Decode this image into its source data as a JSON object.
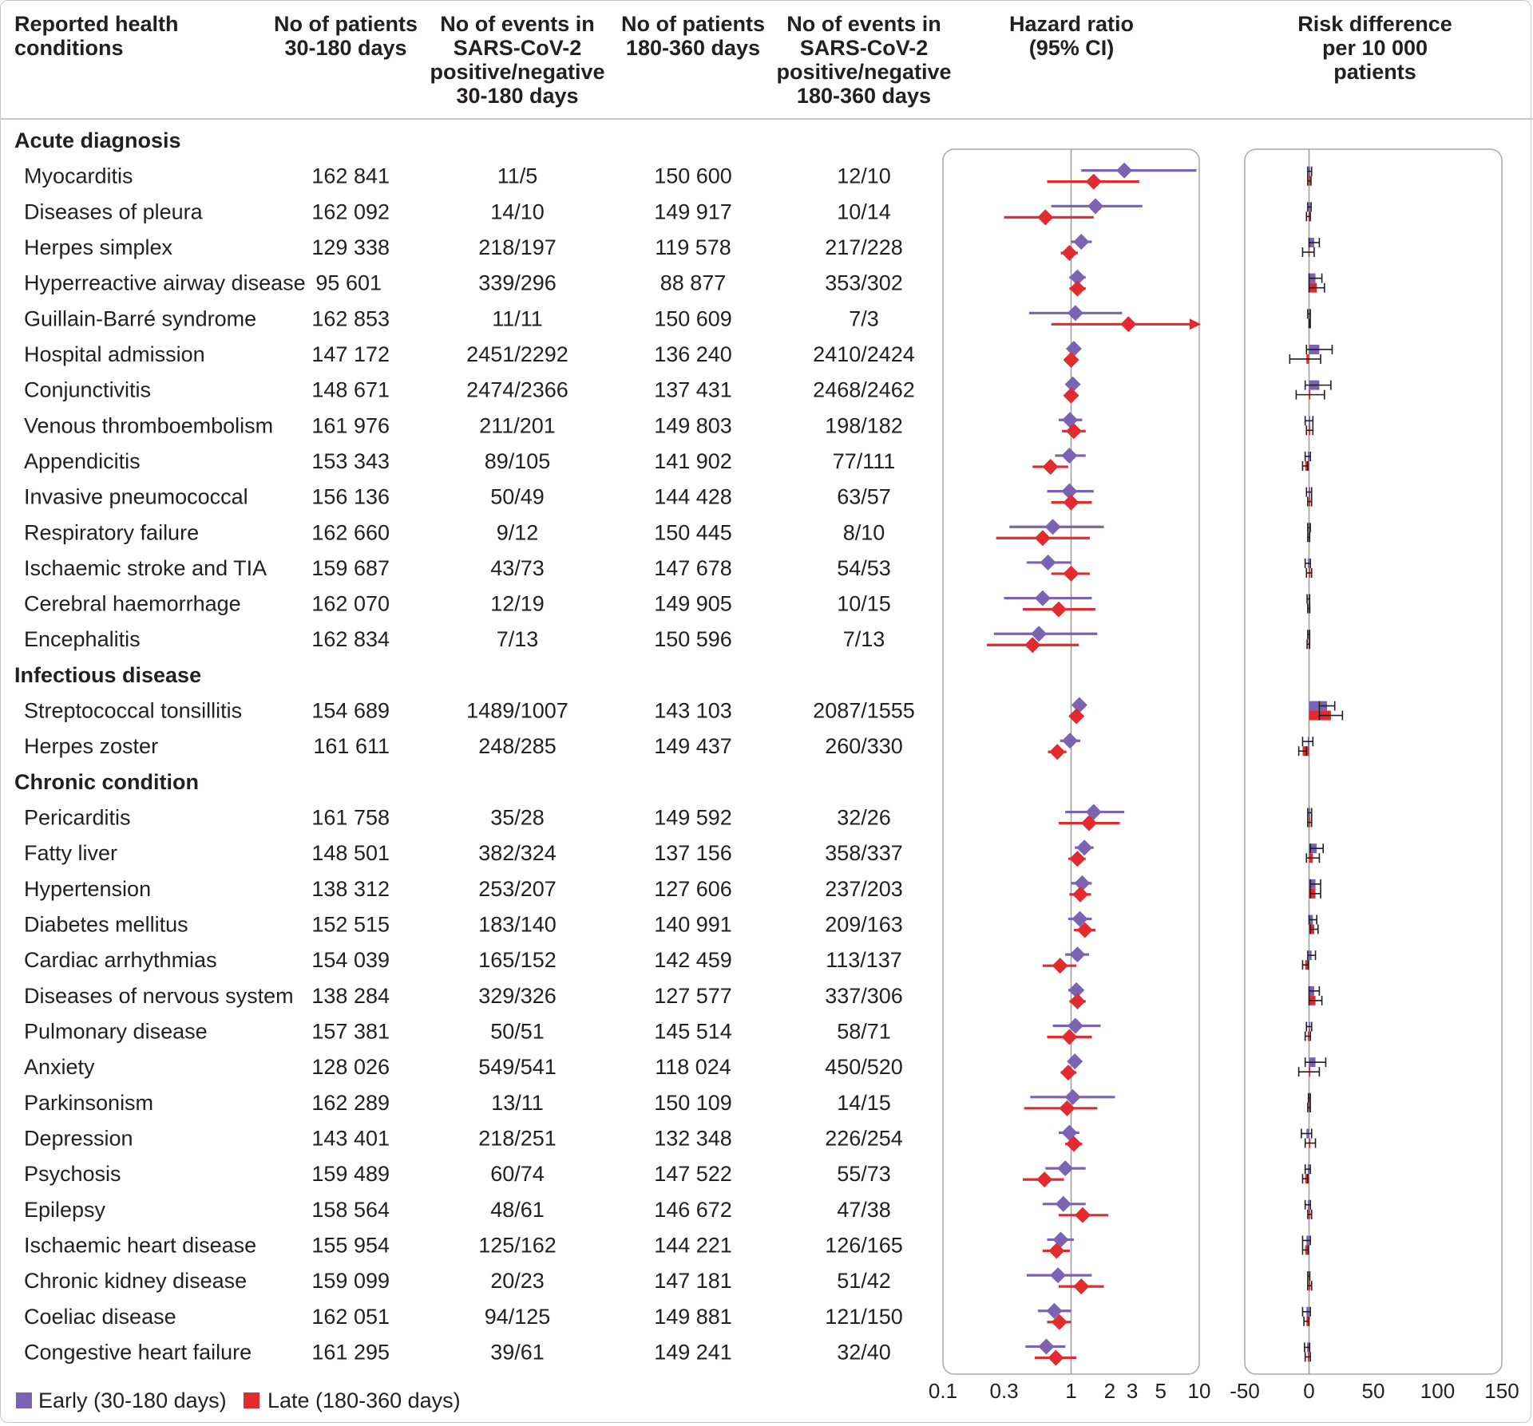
{
  "headers": {
    "condition": [
      "Reported health",
      "conditions"
    ],
    "n1": [
      "No of patients",
      "30-180 days"
    ],
    "e1": [
      "No of events in",
      "SARS-CoV-2",
      "positive/negative",
      "30-180 days"
    ],
    "n2": [
      "No of patients",
      "180-360 days"
    ],
    "e2": [
      "No of events in",
      "SARS-CoV-2",
      "positive/negative",
      "180-360 days"
    ],
    "hr": [
      "Hazard ratio",
      "(95% CI)"
    ],
    "rd": [
      "Risk difference",
      "per 10 000",
      "patients"
    ]
  },
  "legend": {
    "early": {
      "label": "Early (30-180 days)",
      "color": "#7b62b3"
    },
    "late": {
      "label": "Late (180-360 days)",
      "color": "#e12b2e"
    }
  },
  "chart_data": [
    {
      "type": "table",
      "columns": [
        "Reported health conditions",
        "No of patients 30-180 days",
        "No of events in SARS-CoV-2 positive/negative 30-180 days",
        "No of patients 180-360 days",
        "No of events in SARS-CoV-2 positive/negative 180-360 days"
      ],
      "sections": [
        {
          "title": "Acute diagnosis",
          "rows": [
            [
              "Myocarditis",
              "162 841",
              "11/5",
              "150 600",
              "12/10"
            ],
            [
              "Diseases of pleura",
              "162 092",
              "14/10",
              "149 917",
              "10/14"
            ],
            [
              "Herpes simplex",
              "129 338",
              "218/197",
              "119 578",
              "217/228"
            ],
            [
              "Hyperreactive airway disease",
              "95 601",
              "339/296",
              "88 877",
              "353/302"
            ],
            [
              "Guillain-Barré syndrome",
              "162 853",
              "11/11",
              "150 609",
              "7/3"
            ],
            [
              "Hospital admission",
              "147 172",
              "2451/2292",
              "136 240",
              "2410/2424"
            ],
            [
              "Conjunctivitis",
              "148 671",
              "2474/2366",
              "137 431",
              "2468/2462"
            ],
            [
              "Venous thromboembolism",
              "161 976",
              "211/201",
              "149 803",
              "198/182"
            ],
            [
              "Appendicitis",
              "153 343",
              "89/105",
              "141 902",
              "77/111"
            ],
            [
              "Invasive pneumococcal",
              "156 136",
              "50/49",
              "144 428",
              "63/57"
            ],
            [
              "Respiratory failure",
              "162 660",
              "9/12",
              "150 445",
              "8/10"
            ],
            [
              "Ischaemic stroke and TIA",
              "159 687",
              "43/73",
              "147 678",
              "54/53"
            ],
            [
              "Cerebral haemorrhage",
              "162 070",
              "12/19",
              "149 905",
              "10/15"
            ],
            [
              "Encephalitis",
              "162 834",
              "7/13",
              "150 596",
              "7/13"
            ]
          ]
        },
        {
          "title": "Infectious disease",
          "rows": [
            [
              "Streptococcal tonsillitis",
              "154 689",
              "1489/1007",
              "143 103",
              "2087/1555"
            ],
            [
              "Herpes zoster",
              "161 611",
              "248/285",
              "149 437",
              "260/330"
            ]
          ]
        },
        {
          "title": "Chronic condition",
          "rows": [
            [
              "Pericarditis",
              "161 758",
              "35/28",
              "149 592",
              "32/26"
            ],
            [
              "Fatty liver",
              "148 501",
              "382/324",
              "137 156",
              "358/337"
            ],
            [
              "Hypertension",
              "138 312",
              "253/207",
              "127 606",
              "237/203"
            ],
            [
              "Diabetes mellitus",
              "152 515",
              "183/140",
              "140 991",
              "209/163"
            ],
            [
              "Cardiac arrhythmias",
              "154 039",
              "165/152",
              "142 459",
              "113/137"
            ],
            [
              "Diseases of nervous system",
              "138 284",
              "329/326",
              "127 577",
              "337/306"
            ],
            [
              "Pulmonary disease",
              "157 381",
              "50/51",
              "145 514",
              "58/71"
            ],
            [
              "Anxiety",
              "128 026",
              "549/541",
              "118 024",
              "450/520"
            ],
            [
              "Parkinsonism",
              "162 289",
              "13/11",
              "150 109",
              "14/15"
            ],
            [
              "Depression",
              "143 401",
              "218/251",
              "132 348",
              "226/254"
            ],
            [
              "Psychosis",
              "159 489",
              "60/74",
              "147 522",
              "55/73"
            ],
            [
              "Epilepsy",
              "158 564",
              "48/61",
              "146 672",
              "47/38"
            ],
            [
              "Ischaemic heart disease",
              "155 954",
              "125/162",
              "144 221",
              "126/165"
            ],
            [
              "Chronic kidney disease",
              "159 099",
              "20/23",
              "147 181",
              "51/42"
            ],
            [
              "Coeliac disease",
              "162 051",
              "94/125",
              "149 881",
              "121/150"
            ],
            [
              "Congestive heart failure",
              "161 295",
              "39/61",
              "149 241",
              "32/40"
            ]
          ]
        }
      ]
    },
    {
      "type": "scatter",
      "title": "Hazard ratio (95% CI)",
      "xscale": "log",
      "xlim": [
        0.1,
        10
      ],
      "xticks": [
        "0.1",
        "0.3",
        "1",
        "2",
        "3",
        "5",
        "10"
      ],
      "reference_line": 1,
      "series": [
        {
          "name": "Early (30-180 days)",
          "points": [
            [
              2.6,
              1.2,
              9.5
            ],
            [
              1.55,
              0.7,
              3.6
            ],
            [
              1.2,
              1.0,
              1.45
            ],
            [
              1.12,
              0.97,
              1.3
            ],
            [
              1.08,
              0.47,
              2.5
            ],
            [
              1.05,
              0.98,
              1.12
            ],
            [
              1.03,
              0.96,
              1.1
            ],
            [
              0.98,
              0.8,
              1.22
            ],
            [
              0.97,
              0.75,
              1.3
            ],
            [
              0.97,
              0.65,
              1.5
            ],
            [
              0.72,
              0.33,
              1.8
            ],
            [
              0.66,
              0.45,
              1.0
            ],
            [
              0.6,
              0.3,
              1.45
            ],
            [
              0.56,
              0.25,
              1.6
            ],
            [
              1.16,
              1.05,
              1.27
            ],
            [
              0.98,
              0.82,
              1.18
            ],
            [
              1.5,
              0.9,
              2.6
            ],
            [
              1.27,
              1.07,
              1.5
            ],
            [
              1.22,
              1.0,
              1.45
            ],
            [
              1.17,
              0.95,
              1.45
            ],
            [
              1.12,
              0.9,
              1.38
            ],
            [
              1.1,
              0.95,
              1.25
            ],
            [
              1.08,
              0.72,
              1.7
            ],
            [
              1.07,
              0.95,
              1.2
            ],
            [
              1.03,
              0.48,
              2.2
            ],
            [
              0.97,
              0.8,
              1.16
            ],
            [
              0.9,
              0.63,
              1.3
            ],
            [
              0.87,
              0.6,
              1.3
            ],
            [
              0.83,
              0.65,
              1.05
            ],
            [
              0.79,
              0.45,
              1.45
            ],
            [
              0.74,
              0.55,
              1.0
            ],
            [
              0.64,
              0.44,
              0.9
            ]
          ]
        },
        {
          "name": "Late (180-360 days)",
          "points": [
            [
              1.5,
              0.65,
              3.4
            ],
            [
              0.63,
              0.3,
              1.5
            ],
            [
              0.97,
              0.83,
              1.13
            ],
            [
              1.12,
              0.97,
              1.3
            ],
            [
              2.8,
              0.7,
              10
            ],
            [
              1.0,
              0.93,
              1.06
            ],
            [
              1.0,
              0.93,
              1.07
            ],
            [
              1.05,
              0.85,
              1.3
            ],
            [
              0.69,
              0.5,
              0.95
            ],
            [
              1.0,
              0.7,
              1.45
            ],
            [
              0.6,
              0.26,
              1.4
            ],
            [
              1.0,
              0.7,
              1.4
            ],
            [
              0.8,
              0.42,
              1.55
            ],
            [
              0.5,
              0.22,
              1.15
            ],
            [
              1.1,
              1.03,
              1.17
            ],
            [
              0.78,
              0.66,
              0.92
            ],
            [
              1.38,
              0.8,
              2.4
            ],
            [
              1.12,
              0.95,
              1.3
            ],
            [
              1.18,
              0.97,
              1.43
            ],
            [
              1.28,
              1.05,
              1.55
            ],
            [
              0.82,
              0.6,
              1.1
            ],
            [
              1.12,
              0.97,
              1.3
            ],
            [
              0.97,
              0.65,
              1.45
            ],
            [
              0.95,
              0.83,
              1.1
            ],
            [
              0.93,
              0.43,
              1.6
            ],
            [
              1.05,
              0.9,
              1.22
            ],
            [
              0.62,
              0.42,
              0.88
            ],
            [
              1.23,
              0.8,
              1.95
            ],
            [
              0.77,
              0.6,
              0.98
            ],
            [
              1.2,
              0.8,
              1.8
            ],
            [
              0.81,
              0.65,
              1.0
            ],
            [
              0.76,
              0.52,
              1.1
            ]
          ]
        }
      ]
    },
    {
      "type": "bar",
      "title": "Risk difference per 10 000 patients",
      "xlim": [
        -50,
        150
      ],
      "xticks": [
        "-50",
        "0",
        "50",
        "100",
        "150"
      ],
      "reference_line": 0,
      "series": [
        {
          "name": "Early (30-180 days)",
          "points": [
            [
              0.5,
              -1,
              2
            ],
            [
              0.3,
              -1,
              1.6
            ],
            [
              4,
              0,
              8
            ],
            [
              5,
              0,
              10
            ],
            [
              0,
              -1,
              1
            ],
            [
              8,
              -2,
              18
            ],
            [
              8,
              -3,
              17
            ],
            [
              0.5,
              -3,
              3
            ],
            [
              -1,
              -3,
              1
            ],
            [
              0,
              -2,
              2
            ],
            [
              -0.2,
              -1,
              1
            ],
            [
              -1,
              -3,
              1
            ],
            [
              -0.5,
              -1.5,
              0.5
            ],
            [
              -0.3,
              -1,
              0.5
            ],
            [
              14,
              8,
              20
            ],
            [
              -1,
              -5,
              3
            ],
            [
              0.6,
              -1,
              2
            ],
            [
              6,
              1,
              11
            ],
            [
              5,
              1,
              9
            ],
            [
              3,
              0,
              6
            ],
            [
              2,
              -1,
              5
            ],
            [
              4,
              0,
              8
            ],
            [
              0,
              -2,
              2
            ],
            [
              5,
              -3,
              13
            ],
            [
              0.3,
              -0.5,
              1
            ],
            [
              -2,
              -6,
              2
            ],
            [
              -1,
              -3,
              1
            ],
            [
              -1,
              -3,
              1
            ],
            [
              -2,
              -5,
              1
            ],
            [
              -0.2,
              -1,
              0.6
            ],
            [
              -2,
              -5,
              1
            ],
            [
              -1.5,
              -3.5,
              0.5
            ]
          ]
        },
        {
          "name": "Late (180-360 days)",
          "points": [
            [
              0.3,
              -1,
              1.5
            ],
            [
              -0.4,
              -2,
              1
            ],
            [
              -0.5,
              -5,
              4
            ],
            [
              6,
              0,
              12
            ],
            [
              0.5,
              0,
              1
            ],
            [
              -2,
              -15,
              9
            ],
            [
              0,
              -10,
              12
            ],
            [
              0.5,
              -2,
              3
            ],
            [
              -3,
              -5,
              -1
            ],
            [
              0.5,
              -1,
              2
            ],
            [
              -0.3,
              -1,
              0.5
            ],
            [
              0,
              -2,
              2
            ],
            [
              -0.2,
              -1,
              0.6
            ],
            [
              -0.5,
              -1.5,
              0.5
            ],
            [
              17,
              8,
              26
            ],
            [
              -5,
              -8,
              -2
            ],
            [
              0.4,
              -1,
              2
            ],
            [
              3,
              -2,
              8
            ],
            [
              5,
              1,
              9
            ],
            [
              4,
              1,
              7
            ],
            [
              -3,
              -5,
              -0.5
            ],
            [
              5,
              0,
              10
            ],
            [
              -1,
              -3,
              1
            ],
            [
              0,
              -8,
              8
            ],
            [
              0,
              -1,
              1
            ],
            [
              1,
              -3,
              5
            ],
            [
              -3,
              -5,
              -1
            ],
            [
              0.5,
              -1,
              2
            ],
            [
              -3,
              -5,
              -0.5
            ],
            [
              0.5,
              -1,
              2
            ],
            [
              -2,
              -4,
              0
            ],
            [
              -1,
              -3,
              1
            ]
          ]
        }
      ]
    }
  ]
}
